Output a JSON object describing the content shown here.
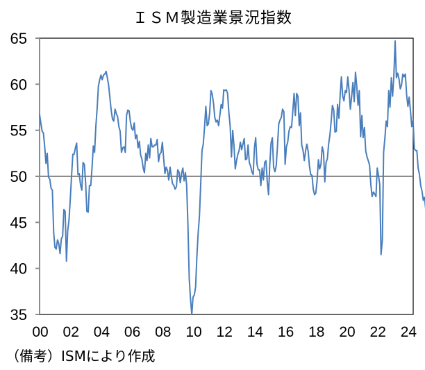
{
  "title": "ＩＳＭ製造業景況指数",
  "note": "（備考）ISMにより作成",
  "colors": {
    "line": "#4A7EBB",
    "refline": "#8C8C8C",
    "axis": "#8C8C8C",
    "frame": "#000000"
  },
  "chart_data": {
    "type": "line",
    "title": "ＩＳＭ製造業景況指数",
    "xlabel": "",
    "ylabel": "",
    "ylim": [
      35,
      65
    ],
    "yticks": [
      35,
      40,
      45,
      50,
      55,
      60,
      65
    ],
    "xticks": [
      "00",
      "02",
      "04",
      "06",
      "08",
      "10",
      "12",
      "14",
      "16",
      "18",
      "20",
      "22",
      "24"
    ],
    "reference_line": 50,
    "grid": false,
    "legend": null,
    "x_start": "2000-01",
    "x_frequency": "monthly",
    "series": [
      {
        "name": "ISM製造業景況指数",
        "values": [
          56.7,
          55.8,
          54.9,
          54.7,
          53.2,
          51.4,
          52.5,
          49.9,
          49.7,
          48.7,
          48.5,
          43.9,
          42.3,
          42.1,
          43.1,
          42.7,
          41.6,
          43.2,
          43.5,
          46.4,
          46.2,
          40.8,
          44.1,
          45.3,
          47.5,
          50.0,
          52.4,
          52.4,
          53.1,
          53.6,
          50.2,
          50.3,
          49.1,
          48.5,
          51.5,
          51.3,
          49.3,
          46.2,
          46.1,
          49.0,
          49.0,
          50.9,
          53.3,
          52.6,
          55.4,
          57.4,
          59.8,
          60.5,
          61.0,
          60.5,
          61.0,
          61.1,
          61.4,
          60.7,
          59.9,
          58.5,
          57.2,
          56.2,
          56.0,
          57.3,
          56.8,
          56.5,
          55.4,
          54.9,
          52.6,
          53.1,
          53.2,
          52.6,
          56.6,
          57.2,
          57.1,
          55.9,
          55.2,
          55.0,
          55.8,
          54.1,
          54.5,
          53.1,
          53.8,
          52.3,
          51.9,
          50.9,
          50.4,
          52.5,
          51.7,
          53.4,
          52.0,
          54.1,
          53.2,
          53.2,
          53.4,
          53.4,
          54.0,
          51.6,
          52.4,
          52.6,
          53.7,
          52.0,
          50.3,
          51.0,
          50.6,
          49.6,
          51.0,
          50.0,
          49.2,
          49.0,
          48.6,
          48.9,
          50.7,
          50.5,
          49.3,
          50.3,
          50.9,
          49.5,
          50.4,
          49.0,
          44.8,
          38.9,
          36.7,
          35.0,
          36.9,
          37.1,
          38.0,
          41.3,
          43.9,
          45.7,
          49.3,
          52.8,
          53.5,
          55.4,
          57.6,
          55.5,
          55.7,
          56.9,
          59.3,
          58.9,
          57.9,
          56.4,
          55.9,
          56.1,
          55.5,
          56.7,
          57.8,
          57.4,
          59.4,
          59.3,
          59.4,
          59.0,
          56.9,
          55.5,
          52.1,
          55.0,
          53.4,
          50.8,
          51.7,
          52.4,
          52.8,
          53.7,
          52.9,
          53.5,
          54.1,
          51.8,
          51.9,
          53.4,
          51.5,
          51.1,
          50.5,
          50.2,
          53.1,
          54.2,
          51.3,
          50.7,
          50.7,
          49.0,
          50.9,
          49.6,
          51.5,
          51.7,
          49.5,
          48.0,
          51.3,
          53.6,
          54.2,
          51.0,
          50.5,
          51.1,
          53.3,
          55.7,
          56.1,
          56.4,
          57.3,
          57.0,
          51.3,
          53.2,
          53.7,
          54.9,
          55.4,
          55.3,
          57.1,
          59.0,
          56.6,
          59.0,
          58.7,
          55.5,
          56.9,
          53.4,
          52.8,
          51.7,
          52.8,
          53.5,
          52.7,
          51.1,
          50.2,
          50.1,
          48.6,
          48.0,
          48.2,
          49.5,
          51.8,
          50.8,
          51.3,
          53.2,
          52.6,
          49.4,
          51.5,
          51.9,
          53.5,
          54.5,
          56.0,
          57.7,
          57.2,
          54.8,
          54.9,
          57.8,
          56.3,
          58.8,
          60.8,
          58.7,
          58.2,
          59.3,
          59.1,
          60.8,
          59.3,
          57.3,
          58.7,
          60.2,
          58.1,
          61.3,
          59.8,
          57.7,
          59.3,
          54.3,
          56.6,
          54.2,
          55.3,
          52.8,
          52.1,
          51.7,
          51.2,
          49.1,
          47.8,
          48.3,
          48.1,
          47.8,
          50.9,
          50.1,
          49.1,
          41.5,
          43.1,
          52.6,
          54.2,
          56.0,
          55.4,
          59.3,
          57.5,
          60.7,
          58.7,
          60.8,
          64.7,
          60.7,
          61.2,
          60.6,
          59.5,
          59.9,
          61.1,
          60.8,
          61.1,
          58.8,
          57.6,
          58.6,
          57.1,
          55.4,
          56.1,
          53.0,
          52.8,
          52.8,
          50.9,
          50.2,
          49.0,
          48.4,
          47.4,
          47.7,
          46.3,
          47.1,
          46.9,
          46.0,
          46.4,
          47.6,
          49.0,
          46.7,
          46.6,
          47.1,
          49.1,
          47.8,
          50.3,
          49.2,
          48.7,
          48.5
        ]
      }
    ]
  }
}
